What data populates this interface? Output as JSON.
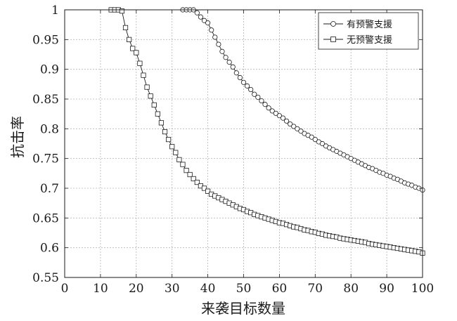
{
  "chart_data": {
    "type": "line",
    "title": "",
    "xlabel": "来袭目标数量",
    "ylabel": "抗击率",
    "xlim": [
      0,
      100
    ],
    "ylim": [
      0.55,
      1
    ],
    "xticks": [
      "0",
      "10",
      "20",
      "30",
      "40",
      "50",
      "60",
      "70",
      "80",
      "90",
      "100"
    ],
    "yticks": [
      "0.55",
      "0.6",
      "0.65",
      "0.7",
      "0.75",
      "0.8",
      "0.85",
      "0.9",
      "0.95",
      "1"
    ],
    "grid": true,
    "legend_position": "top-right",
    "series": [
      {
        "name": "有预警支援",
        "marker": "circle",
        "x": [
          33,
          34,
          35,
          36,
          37,
          38,
          39,
          40,
          41,
          42,
          43,
          44,
          45,
          46,
          47,
          48,
          49,
          50,
          51,
          52,
          53,
          54,
          55,
          56,
          57,
          58,
          59,
          60,
          61,
          62,
          63,
          64,
          65,
          66,
          67,
          68,
          69,
          70,
          71,
          72,
          73,
          74,
          75,
          76,
          77,
          78,
          79,
          80,
          81,
          82,
          83,
          84,
          85,
          86,
          87,
          88,
          89,
          90,
          91,
          92,
          93,
          94,
          95,
          96,
          97,
          98,
          99,
          100
        ],
        "y": [
          1.0,
          1.0,
          1.0,
          1.0,
          0.995,
          0.988,
          0.982,
          0.978,
          0.966,
          0.954,
          0.942,
          0.93,
          0.92,
          0.912,
          0.904,
          0.894,
          0.886,
          0.878,
          0.872,
          0.866,
          0.858,
          0.853,
          0.847,
          0.841,
          0.835,
          0.83,
          0.826,
          0.822,
          0.818,
          0.813,
          0.808,
          0.804,
          0.8,
          0.796,
          0.792,
          0.789,
          0.786,
          0.782,
          0.778,
          0.775,
          0.771,
          0.768,
          0.765,
          0.762,
          0.759,
          0.756,
          0.753,
          0.75,
          0.747,
          0.744,
          0.741,
          0.738,
          0.735,
          0.733,
          0.73,
          0.727,
          0.725,
          0.722,
          0.72,
          0.717,
          0.715,
          0.712,
          0.709,
          0.707,
          0.705,
          0.702,
          0.7,
          0.697
        ]
      },
      {
        "name": "无预警支援",
        "marker": "square",
        "x": [
          13,
          14,
          15,
          16,
          17,
          18,
          19,
          20,
          21,
          22,
          23,
          24,
          25,
          26,
          27,
          28,
          29,
          30,
          31,
          32,
          33,
          34,
          35,
          36,
          37,
          38,
          39,
          40,
          41,
          42,
          43,
          44,
          45,
          46,
          47,
          48,
          49,
          50,
          51,
          52,
          53,
          54,
          55,
          56,
          57,
          58,
          59,
          60,
          61,
          62,
          63,
          64,
          65,
          66,
          67,
          68,
          69,
          70,
          71,
          72,
          73,
          74,
          75,
          76,
          77,
          78,
          79,
          80,
          81,
          82,
          83,
          84,
          85,
          86,
          87,
          88,
          89,
          90,
          91,
          92,
          93,
          94,
          95,
          96,
          97,
          98,
          99,
          100
        ],
        "y": [
          1.0,
          1.0,
          1.0,
          0.998,
          0.97,
          0.95,
          0.935,
          0.928,
          0.91,
          0.89,
          0.87,
          0.855,
          0.84,
          0.825,
          0.81,
          0.795,
          0.782,
          0.77,
          0.76,
          0.748,
          0.74,
          0.73,
          0.723,
          0.716,
          0.71,
          0.704,
          0.7,
          0.695,
          0.69,
          0.687,
          0.684,
          0.681,
          0.678,
          0.675,
          0.672,
          0.669,
          0.666,
          0.664,
          0.661,
          0.659,
          0.656,
          0.654,
          0.652,
          0.65,
          0.648,
          0.646,
          0.644,
          0.642,
          0.641,
          0.639,
          0.637,
          0.635,
          0.634,
          0.632,
          0.63,
          0.629,
          0.627,
          0.626,
          0.624,
          0.623,
          0.621,
          0.62,
          0.619,
          0.618,
          0.616,
          0.615,
          0.614,
          0.613,
          0.612,
          0.611,
          0.61,
          0.609,
          0.607,
          0.606,
          0.605,
          0.604,
          0.603,
          0.602,
          0.601,
          0.6,
          0.599,
          0.598,
          0.597,
          0.596,
          0.595,
          0.594,
          0.593,
          0.591
        ]
      }
    ]
  }
}
